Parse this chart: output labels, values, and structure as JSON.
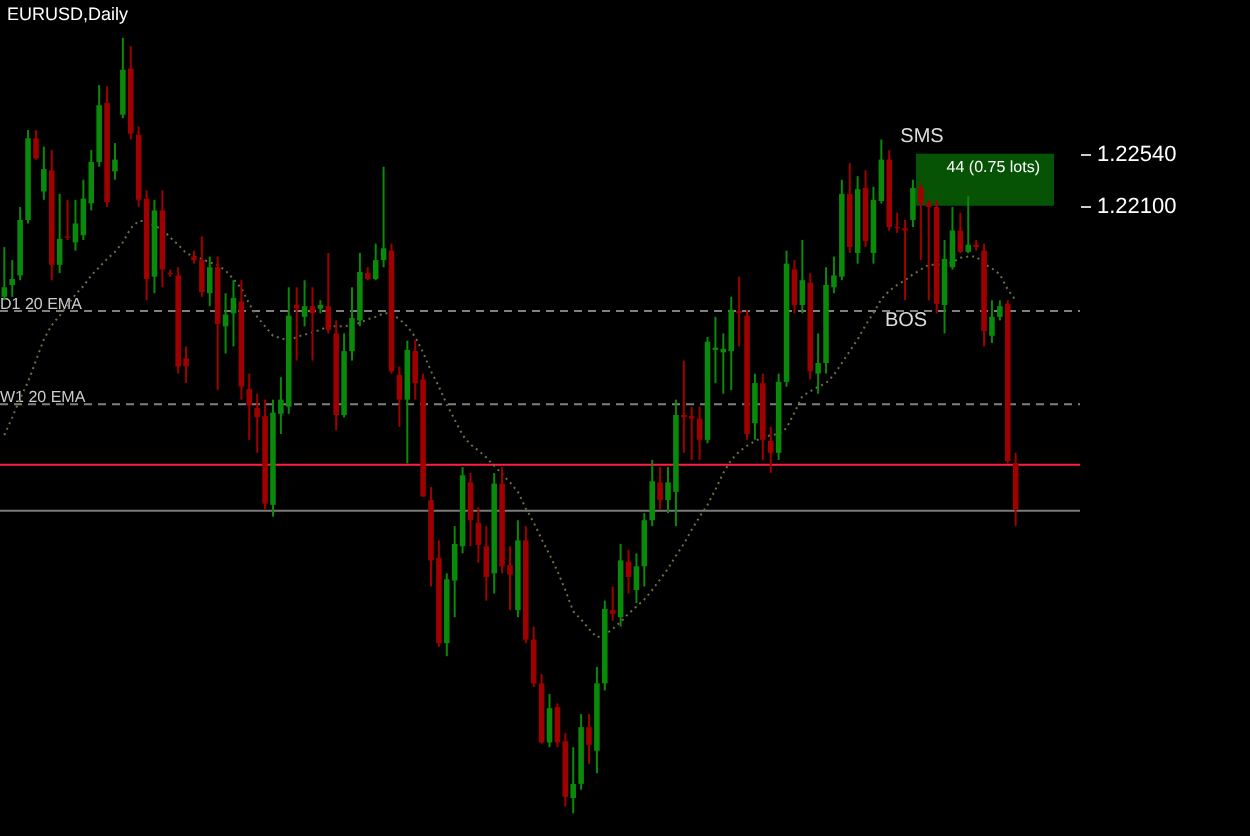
{
  "chart_data": {
    "type": "candlestick",
    "title": "EURUSD,Daily",
    "categories": [
      null,
      null,
      null,
      null,
      null,
      null,
      null,
      null,
      null,
      null,
      null,
      null,
      null,
      null,
      null,
      null,
      null,
      null,
      null,
      null,
      null,
      null,
      null,
      null,
      null,
      null,
      null,
      null,
      null,
      null,
      null,
      null,
      null,
      null,
      null,
      null,
      null,
      null,
      null,
      null,
      null,
      null,
      null,
      null,
      null,
      null,
      null,
      null,
      null,
      null,
      null,
      null,
      null,
      null,
      null,
      null,
      null,
      null,
      null,
      null,
      null,
      null,
      null,
      null,
      null,
      null,
      null,
      null,
      null,
      null,
      null,
      null,
      null,
      null,
      null,
      null,
      null,
      null,
      null,
      null,
      null,
      null,
      null,
      null,
      null,
      null,
      null,
      null,
      null,
      null,
      null,
      null,
      null,
      null,
      null,
      null,
      null,
      null,
      null,
      null,
      null,
      null,
      null,
      null,
      null,
      null,
      null,
      null,
      null,
      null,
      null,
      null,
      null,
      null,
      null,
      null,
      null,
      null,
      null,
      null,
      null,
      null,
      null,
      null,
      null,
      null,
      null,
      null,
      null
    ],
    "ohlc": [
      [
        1.2133,
        1.2175,
        1.213,
        1.2141
      ],
      [
        1.2143,
        1.2164,
        1.2133,
        1.2148
      ],
      [
        1.2151,
        1.2209,
        1.2147,
        1.2198
      ],
      [
        1.2198,
        1.2274,
        1.2195,
        1.2267
      ],
      [
        1.2267,
        1.2274,
        1.2249,
        1.225
      ],
      [
        1.2222,
        1.226,
        1.2215,
        1.2241
      ],
      [
        1.224,
        1.2257,
        1.2147,
        1.216
      ],
      [
        1.216,
        1.222,
        1.2153,
        1.2182
      ],
      [
        1.2184,
        1.2215,
        1.2181,
        1.2183
      ],
      [
        1.2179,
        1.2215,
        1.2172,
        1.2195
      ],
      [
        1.2185,
        1.2232,
        1.2181,
        1.2216
      ],
      [
        1.2212,
        1.2257,
        1.2206,
        1.2247
      ],
      [
        1.2247,
        1.2312,
        1.2243,
        1.2295
      ],
      [
        1.2297,
        1.2311,
        1.2209,
        1.2213
      ],
      [
        1.2239,
        1.2263,
        1.2232,
        1.2249
      ],
      [
        1.2287,
        1.2352,
        1.2284,
        1.2325
      ],
      [
        1.2326,
        1.2345,
        1.2266,
        1.2271
      ],
      [
        1.227,
        1.2277,
        1.2209,
        1.2215
      ],
      [
        1.2216,
        1.2223,
        1.213,
        1.2148
      ],
      [
        1.215,
        1.2215,
        1.2136,
        1.2206
      ],
      [
        1.2206,
        1.2223,
        1.2141,
        1.2156
      ],
      [
        1.2153,
        1.2156,
        1.215,
        1.2152
      ],
      [
        1.2151,
        1.2158,
        1.2068,
        1.2074
      ],
      [
        1.2081,
        1.2091,
        1.206,
        1.2074
      ],
      [
        1.2167,
        1.2172,
        1.2161,
        1.2164
      ],
      [
        1.2164,
        1.2184,
        1.2133,
        1.2137
      ],
      [
        1.2136,
        1.2167,
        1.2125,
        1.2158
      ],
      [
        1.2158,
        1.2167,
        1.2054,
        1.211
      ],
      [
        1.2108,
        1.2136,
        1.2085,
        1.2118
      ],
      [
        1.2119,
        1.2147,
        1.2091,
        1.2132
      ],
      [
        1.2129,
        1.2147,
        1.2046,
        1.2057
      ],
      [
        1.2055,
        1.2068,
        1.2012,
        1.2041
      ],
      [
        1.2039,
        1.2051,
        1.2001,
        1.2031
      ],
      [
        1.2032,
        1.2046,
        1.1953,
        1.1958
      ],
      [
        1.1957,
        1.2046,
        1.1947,
        1.2035
      ],
      [
        1.2034,
        1.2065,
        1.2017,
        1.2046
      ],
      [
        1.204,
        1.2141,
        1.2034,
        1.2117
      ],
      [
        1.2126,
        1.2141,
        1.2079,
        1.2123
      ],
      [
        1.2116,
        1.2147,
        1.2108,
        1.2125
      ],
      [
        1.2125,
        1.2141,
        1.2079,
        1.2119
      ],
      [
        1.2123,
        1.213,
        1.2119,
        1.2126
      ],
      [
        1.2125,
        1.217,
        1.2102,
        1.2105
      ],
      [
        1.2102,
        1.2113,
        1.202,
        1.2033
      ],
      [
        1.2033,
        1.2102,
        1.2031,
        1.2087
      ],
      [
        1.2087,
        1.2141,
        1.2079,
        1.2115
      ],
      [
        1.2113,
        1.217,
        1.2108,
        1.2154
      ],
      [
        1.2153,
        1.2158,
        1.2147,
        1.2148
      ],
      [
        1.2148,
        1.2178,
        1.2147,
        1.2164
      ],
      [
        1.2164,
        1.2243,
        1.2158,
        1.2174
      ],
      [
        1.2172,
        1.2178,
        1.2068,
        1.207
      ],
      [
        1.2067,
        1.2074,
        1.2023,
        1.2046
      ],
      [
        1.2046,
        1.2096,
        1.1992,
        1.2088
      ],
      [
        1.2087,
        1.2096,
        1.2046,
        1.206
      ],
      [
        1.2063,
        1.2068,
        1.1964,
        1.1964
      ],
      [
        1.1961,
        1.1972,
        1.1888,
        1.191
      ],
      [
        1.1912,
        1.1927,
        1.1837,
        1.184
      ],
      [
        1.184,
        1.1899,
        1.1829,
        1.1894
      ],
      [
        1.1893,
        1.1939,
        1.1862,
        1.1924
      ],
      [
        1.1922,
        1.1989,
        1.1916,
        1.1982
      ],
      [
        1.1976,
        1.1984,
        1.1922,
        1.1944
      ],
      [
        1.1942,
        1.1955,
        1.1908,
        1.1923
      ],
      [
        1.1922,
        1.1939,
        1.1876,
        1.1896
      ],
      [
        1.1899,
        1.1984,
        1.1882,
        1.1975
      ],
      [
        1.1975,
        1.1989,
        1.1899,
        1.1905
      ],
      [
        1.1906,
        1.1922,
        1.1868,
        1.1898
      ],
      [
        1.1868,
        1.1944,
        1.1862,
        1.1927
      ],
      [
        1.1927,
        1.1939,
        1.184,
        1.1843
      ],
      [
        1.1843,
        1.1854,
        1.1803,
        1.1806
      ],
      [
        1.1806,
        1.1814,
        1.1755,
        1.1756
      ],
      [
        1.1756,
        1.1797,
        1.1752,
        1.1785
      ],
      [
        1.1786,
        1.1789,
        1.1752,
        1.1756
      ],
      [
        1.1757,
        1.1764,
        1.1702,
        1.171
      ],
      [
        1.1709,
        1.1752,
        1.1696,
        1.1721
      ],
      [
        1.1721,
        1.178,
        1.1716,
        1.1769
      ],
      [
        1.1769,
        1.178,
        1.1738,
        1.1754
      ],
      [
        1.1749,
        1.182,
        1.173,
        1.1806
      ],
      [
        1.1806,
        1.1876,
        1.18,
        1.1869
      ],
      [
        1.1868,
        1.1888,
        1.1859,
        1.1865
      ],
      [
        1.1862,
        1.1924,
        1.1854,
        1.191
      ],
      [
        1.1909,
        1.1919,
        1.1882,
        1.1896
      ],
      [
        1.1885,
        1.1916,
        1.1874,
        1.1905
      ],
      [
        1.1905,
        1.195,
        1.1888,
        1.1944
      ],
      [
        1.1944,
        1.1995,
        1.1939,
        1.1977
      ],
      [
        1.1976,
        1.1989,
        1.1953,
        1.1961
      ],
      [
        1.1961,
        1.1989,
        1.195,
        1.1976
      ],
      [
        1.1968,
        1.2046,
        1.1939,
        1.2033
      ],
      [
        1.2033,
        1.2079,
        1.2001,
        1.2031
      ],
      [
        1.2032,
        1.204,
        1.1995,
        1.203
      ],
      [
        1.203,
        1.204,
        1.1995,
        1.2012
      ],
      [
        1.2012,
        1.2099,
        1.2009,
        1.2095
      ],
      [
        1.2088,
        1.2116,
        1.206,
        1.209
      ],
      [
        1.2086,
        1.2102,
        1.2051,
        1.2089
      ],
      [
        1.2087,
        1.2133,
        1.2054,
        1.2122
      ],
      [
        1.2121,
        1.215,
        1.2091,
        1.2119
      ],
      [
        1.2117,
        1.2122,
        1.2012,
        1.2017
      ],
      [
        1.2026,
        1.2068,
        1.2012,
        1.206
      ],
      [
        1.206,
        1.2068,
        1.1995,
        1.2012
      ],
      [
        1.2011,
        1.2023,
        1.1984,
        1.2001
      ],
      [
        1.2001,
        1.2068,
        1.1995,
        1.2061
      ],
      [
        1.2061,
        1.2172,
        1.2057,
        1.2161
      ],
      [
        1.2156,
        1.2164,
        1.2119,
        1.2126
      ],
      [
        1.2126,
        1.2181,
        1.2119,
        1.2147
      ],
      [
        1.2145,
        1.2153,
        1.2063,
        1.207
      ],
      [
        1.2068,
        1.2102,
        1.2051,
        1.2077
      ],
      [
        1.2077,
        1.2158,
        1.2068,
        1.2143
      ],
      [
        1.2141,
        1.2167,
        1.2136,
        1.2151
      ],
      [
        1.215,
        1.2232,
        1.2147,
        1.222
      ],
      [
        1.222,
        1.2246,
        1.217,
        1.2175
      ],
      [
        1.217,
        1.2235,
        1.2161,
        1.2224
      ],
      [
        1.2225,
        1.224,
        1.2175,
        1.218
      ],
      [
        1.217,
        1.2226,
        1.2161,
        1.2215
      ],
      [
        1.2214,
        1.2266,
        1.2212,
        1.2249
      ],
      [
        1.2249,
        1.2257,
        1.2189,
        1.2192
      ],
      [
        1.2192,
        1.2204,
        1.2187,
        1.2191
      ],
      [
        1.2191,
        1.2198,
        1.213,
        1.2189
      ],
      [
        1.2198,
        1.2232,
        1.2192,
        1.2225
      ],
      [
        1.2225,
        1.2229,
        1.2164,
        1.2212
      ],
      [
        1.2212,
        1.2215,
        1.213,
        1.2209
      ],
      [
        1.2209,
        1.2215,
        1.2119,
        1.2127
      ],
      [
        1.2126,
        1.2181,
        1.2102,
        1.2165
      ],
      [
        1.2158,
        1.2209,
        1.2156,
        1.2189
      ],
      [
        1.2189,
        1.2204,
        1.217,
        1.2171
      ],
      [
        1.2171,
        1.2218,
        1.217,
        1.2177
      ],
      [
        1.2177,
        1.2181,
        1.2172,
        1.2175
      ],
      [
        1.2172,
        1.2178,
        1.2091,
        1.2104
      ],
      [
        1.21,
        1.213,
        1.2094,
        1.2116
      ],
      [
        1.2116,
        1.213,
        1.2113,
        1.2125
      ],
      [
        1.2127,
        1.213,
        1.1992,
        1.1994
      ],
      [
        1.1992,
        1.2001,
        1.1939,
        1.1953
      ]
    ],
    "colors": [
      "#0a8a0a",
      "#0a8a0a",
      "#0a8a0a",
      "#0a8a0a",
      "#a00000",
      "#0a8a0a",
      "#a00000",
      "#0a8a0a",
      "#a00000",
      "#0a8a0a",
      "#0a8a0a",
      "#0a8a0a",
      "#0a8a0a",
      "#a00000",
      "#0a8a0a",
      "#0a8a0a",
      "#a00000",
      "#a00000",
      "#a00000",
      "#0a8a0a",
      "#a00000",
      "#a00000",
      "#a00000",
      "#a00000",
      "#a00000",
      "#a00000",
      "#0a8a0a",
      "#a00000",
      "#0a8a0a",
      "#0a8a0a",
      "#a00000",
      "#a00000",
      "#a00000",
      "#a00000",
      "#0a8a0a",
      "#0a8a0a",
      "#0a8a0a",
      "#a00000",
      "#0a8a0a",
      "#a00000",
      "#0a8a0a",
      "#a00000",
      "#a00000",
      "#0a8a0a",
      "#0a8a0a",
      "#0a8a0a",
      "#a00000",
      "#0a8a0a",
      "#0a8a0a",
      "#a00000",
      "#a00000",
      "#0a8a0a",
      "#a00000",
      "#a00000",
      "#a00000",
      "#a00000",
      "#0a8a0a",
      "#0a8a0a",
      "#0a8a0a",
      "#a00000",
      "#a00000",
      "#a00000",
      "#0a8a0a",
      "#a00000",
      "#a00000",
      "#0a8a0a",
      "#a00000",
      "#a00000",
      "#a00000",
      "#0a8a0a",
      "#a00000",
      "#a00000",
      "#0a8a0a",
      "#0a8a0a",
      "#a00000",
      "#0a8a0a",
      "#0a8a0a",
      "#a00000",
      "#0a8a0a",
      "#a00000",
      "#0a8a0a",
      "#0a8a0a",
      "#0a8a0a",
      "#a00000",
      "#0a8a0a",
      "#0a8a0a",
      "#a00000",
      "#a00000",
      "#a00000",
      "#0a8a0a",
      "#0a8a0a",
      "#0a8a0a",
      "#0a8a0a",
      "#a00000",
      "#a00000",
      "#0a8a0a",
      "#a00000",
      "#a00000",
      "#0a8a0a",
      "#0a8a0a",
      "#a00000",
      "#0a8a0a",
      "#a00000",
      "#0a8a0a",
      "#0a8a0a",
      "#0a8a0a",
      "#0a8a0a",
      "#a00000",
      "#0a8a0a",
      "#a00000",
      "#0a8a0a",
      "#0a8a0a",
      "#a00000",
      "#a00000",
      "#a00000",
      "#0a8a0a",
      "#a00000",
      "#a00000",
      "#a00000",
      "#0a8a0a",
      "#0a8a0a",
      "#a00000",
      "#0a8a0a",
      "#a00000",
      "#a00000",
      "#0a8a0a",
      "#0a8a0a",
      "#a00000",
      "#a00000"
    ],
    "series": [
      {
        "type": "line",
        "color": "#6e6e48",
        "line_style": "dotted",
        "values": [
          1.2016,
          1.2031,
          1.2047,
          1.2061,
          1.2079,
          1.2097,
          1.2109,
          1.2117,
          1.2126,
          1.2135,
          1.2142,
          1.2151,
          1.2158,
          1.2165,
          1.2171,
          1.2179,
          1.2191,
          1.2197,
          1.2197,
          1.2193,
          1.219,
          1.2183,
          1.2177,
          1.217,
          1.2167,
          1.2165,
          1.2162,
          1.216,
          1.2155,
          1.2148,
          1.214,
          1.2127,
          1.2116,
          1.2108,
          1.21,
          1.2098,
          1.2096,
          1.2099,
          1.2101,
          1.2103,
          1.2105,
          1.2108,
          1.2108,
          1.2108,
          1.2109,
          1.2111,
          1.2114,
          1.2116,
          1.2119,
          1.2119,
          1.2114,
          1.2108,
          1.2099,
          1.2086,
          1.207,
          1.2057,
          1.2042,
          1.2029,
          1.2016,
          1.2008,
          1.2003,
          1.1997,
          1.199,
          1.1983,
          1.1976,
          1.1968,
          1.1954,
          1.1942,
          1.1928,
          1.1915,
          1.1901,
          1.1885,
          1.1867,
          1.186,
          1.1852,
          1.1845,
          1.1847,
          1.1852,
          1.1858,
          1.1865,
          1.1871,
          1.1877,
          1.1885,
          1.1894,
          1.1903,
          1.1914,
          1.1924,
          1.1936,
          1.1947,
          1.1957,
          1.197,
          1.1984,
          1.1995,
          1.2002,
          1.2007,
          1.2011,
          1.2014,
          1.2016,
          1.2017,
          1.2022,
          1.2035,
          1.2049,
          1.2053,
          1.2057,
          1.206,
          1.2067,
          1.2077,
          1.2087,
          1.2097,
          1.2109,
          1.2119,
          1.2131,
          1.2138,
          1.2143,
          1.2147,
          1.2152,
          1.2156,
          1.216,
          1.216,
          1.2161,
          1.2162,
          1.2166,
          1.2167,
          1.2167,
          1.2161,
          1.2157,
          1.2152,
          1.2139,
          1.213
        ]
      }
    ],
    "ylim": [
      1.1682,
      1.2384
    ],
    "yticks": [
      {
        "value": 1.2254,
        "label": "1.22540"
      },
      {
        "value": 1.221,
        "label": "1.22100"
      }
    ],
    "tick_labels": "y",
    "ref_lines": [
      {
        "axis": "y",
        "value": 1.2121,
        "label": "D1 20 EMA",
        "color": "#808080",
        "line_style": "dashed"
      },
      {
        "axis": "y",
        "value": 1.2042,
        "label": "W1 20 EMA",
        "color": "#808080",
        "line_style": "dashed"
      },
      {
        "axis": "y",
        "value": 1.1991,
        "color": "#ff2040",
        "line_style": "solid"
      },
      {
        "axis": "y",
        "value": 1.1952,
        "color": "#7a7a7a",
        "line_style": "solid"
      }
    ],
    "bands": [
      {
        "axis": "y",
        "from": 1.221,
        "to": 1.2254,
        "label": "44 (0.75 lots)",
        "color": "#0a8a0a"
      }
    ],
    "annotations": [
      "SMS",
      "BOS"
    ]
  }
}
